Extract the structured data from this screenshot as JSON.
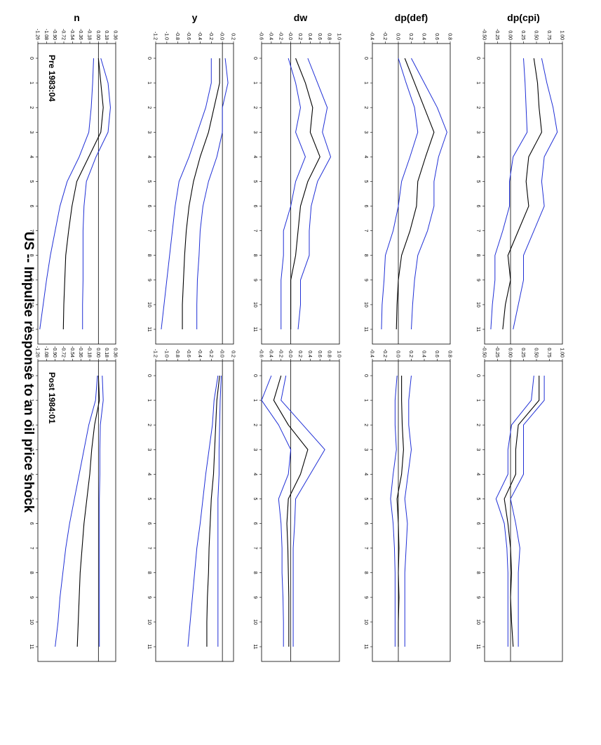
{
  "figure": {
    "title": "US -- Impulse response to an oil price shock",
    "subtitles": [
      "Pre 1983:04",
      "Post 1984:01"
    ]
  },
  "colors": {
    "point": "#000000",
    "band": "#1f2fd6",
    "zero": "#000000",
    "frame": "#000000"
  },
  "chart_data": [
    {
      "type": "line",
      "panel": "Pre 1983:04",
      "ylabel": "dp(cpi)",
      "x": [
        0,
        1,
        2,
        3,
        4,
        5,
        6,
        7,
        8,
        9,
        10,
        11
      ],
      "yticks": [
        "1.00",
        "0.75",
        "0.50",
        "0.25",
        "0.00",
        "-0.25",
        "-0.50"
      ],
      "ylim": [
        -0.5,
        1.0
      ],
      "series": [
        {
          "values": [
            0.45,
            0.52,
            0.55,
            0.6,
            0.35,
            0.3,
            0.35,
            0.15,
            -0.05,
            0.0,
            -0.1,
            -0.15
          ]
        },
        {
          "values": [
            0.6,
            0.7,
            0.82,
            0.9,
            0.65,
            0.6,
            0.65,
            0.45,
            0.25,
            0.25,
            0.15,
            0.05
          ]
        },
        {
          "values": [
            0.25,
            0.28,
            0.3,
            0.32,
            0.05,
            -0.02,
            -0.02,
            -0.15,
            -0.3,
            -0.3,
            -0.35,
            -0.38
          ]
        }
      ]
    },
    {
      "type": "line",
      "panel": "Pre 1983:04",
      "ylabel": "dp(def)",
      "x": [
        0,
        1,
        2,
        3,
        4,
        5,
        6,
        7,
        8,
        9,
        10,
        11
      ],
      "yticks": [
        "0.8",
        "0.6",
        "0.4",
        "0.2",
        "0.0",
        "-0.2",
        "-0.4"
      ],
      "ylim": [
        -0.4,
        0.8
      ],
      "series": [
        {
          "values": [
            0.1,
            0.25,
            0.4,
            0.55,
            0.42,
            0.3,
            0.28,
            0.18,
            0.05,
            0.0,
            -0.02,
            -0.03
          ]
        },
        {
          "values": [
            0.2,
            0.4,
            0.6,
            0.75,
            0.62,
            0.55,
            0.55,
            0.45,
            0.3,
            0.25,
            0.22,
            0.2
          ]
        },
        {
          "values": [
            0.0,
            0.12,
            0.25,
            0.3,
            0.18,
            0.05,
            0.0,
            -0.08,
            -0.2,
            -0.22,
            -0.25,
            -0.26
          ]
        }
      ]
    },
    {
      "type": "line",
      "panel": "Pre 1983:04",
      "ylabel": "dw",
      "x": [
        0,
        1,
        2,
        3,
        4,
        5,
        6,
        7,
        8,
        9,
        10,
        11
      ],
      "yticks": [
        "1.0",
        "0.8",
        "0.6",
        "0.4",
        "0.2",
        "-0.0",
        "-0.2",
        "-0.4",
        "-0.6"
      ],
      "ylim": [
        -0.6,
        1.0
      ],
      "series": [
        {
          "values": [
            0.1,
            0.3,
            0.45,
            0.4,
            0.6,
            0.35,
            0.2,
            0.15,
            0.1,
            0.0,
            0.0,
            0.0
          ]
        },
        {
          "values": [
            0.35,
            0.55,
            0.75,
            0.65,
            0.82,
            0.55,
            0.42,
            0.38,
            0.38,
            0.2,
            0.2,
            0.15
          ]
        },
        {
          "values": [
            -0.05,
            0.1,
            0.2,
            0.1,
            0.3,
            0.1,
            0.0,
            -0.15,
            -0.15,
            -0.2,
            -0.2,
            -0.2
          ]
        }
      ]
    },
    {
      "type": "line",
      "panel": "Pre 1983:04",
      "ylabel": "y",
      "x": [
        0,
        1,
        2,
        3,
        4,
        5,
        6,
        7,
        8,
        9,
        10,
        11
      ],
      "yticks": [
        "0.2",
        "-0.0",
        "-0.2",
        "-0.4",
        "-0.6",
        "-0.8",
        "-1.0",
        "-1.2"
      ],
      "ylim": [
        -1.2,
        0.2
      ],
      "series": [
        {
          "values": [
            -0.05,
            -0.05,
            -0.15,
            -0.25,
            -0.4,
            -0.52,
            -0.6,
            -0.65,
            -0.68,
            -0.7,
            -0.72,
            -0.72
          ]
        },
        {
          "values": [
            0.05,
            0.1,
            0.0,
            0.0,
            -0.1,
            -0.25,
            -0.35,
            -0.4,
            -0.42,
            -0.45,
            -0.46,
            -0.46
          ]
        },
        {
          "values": [
            -0.2,
            -0.2,
            -0.3,
            -0.45,
            -0.6,
            -0.78,
            -0.85,
            -0.9,
            -0.95,
            -1.0,
            -1.05,
            -1.1
          ]
        }
      ]
    },
    {
      "type": "line",
      "panel": "Pre 1983:04",
      "ylabel": "n",
      "x": [
        0,
        1,
        2,
        3,
        4,
        5,
        6,
        7,
        8,
        9,
        10,
        11
      ],
      "yticks": [
        "0.36",
        "0.18",
        "0.00",
        "-0.18",
        "-0.36",
        "-0.54",
        "-0.72",
        "-0.90",
        "-1.08",
        "-1.26"
      ],
      "ylim": [
        -1.26,
        0.36
      ],
      "series": [
        {
          "values": [
            0.0,
            0.05,
            0.1,
            0.05,
            -0.2,
            -0.45,
            -0.55,
            -0.62,
            -0.68,
            -0.7,
            -0.72,
            -0.73
          ]
        },
        {
          "values": [
            0.05,
            0.2,
            0.25,
            0.2,
            -0.05,
            -0.25,
            -0.3,
            -0.32,
            -0.32,
            -0.32,
            -0.33,
            -0.33
          ]
        },
        {
          "values": [
            -0.1,
            -0.12,
            -0.15,
            -0.2,
            -0.4,
            -0.65,
            -0.8,
            -0.9,
            -1.0,
            -1.08,
            -1.15,
            -1.22
          ]
        }
      ]
    },
    {
      "type": "line",
      "panel": "Post 1984:01",
      "x": [
        0,
        1,
        2,
        3,
        4,
        5,
        6,
        7,
        8,
        9,
        10,
        11
      ],
      "yticks": [
        "1.00",
        "0.75",
        "0.50",
        "0.25",
        "0.00",
        "-0.25",
        "-0.50"
      ],
      "ylim": [
        -0.5,
        1.0
      ],
      "series": [
        {
          "values": [
            0.55,
            0.55,
            0.15,
            0.1,
            0.1,
            -0.12,
            -0.05,
            0.0,
            0.02,
            0.0,
            0.02,
            0.05
          ]
        },
        {
          "values": [
            0.65,
            0.65,
            0.25,
            0.25,
            0.25,
            0.0,
            0.1,
            0.18,
            0.15,
            0.15,
            0.15,
            0.15
          ]
        },
        {
          "values": [
            0.45,
            0.4,
            0.02,
            -0.05,
            -0.05,
            -0.28,
            -0.12,
            -0.07,
            -0.05,
            -0.05,
            -0.05,
            -0.05
          ]
        }
      ]
    },
    {
      "type": "line",
      "panel": "Post 1984:01",
      "x": [
        0,
        1,
        2,
        3,
        4,
        5,
        6,
        7,
        8,
        9,
        10,
        11
      ],
      "yticks": [
        "0.8",
        "0.6",
        "0.4",
        "0.2",
        "0.0",
        "-0.2",
        "-0.4"
      ],
      "ylim": [
        -0.4,
        0.8
      ],
      "series": [
        {
          "values": [
            0.05,
            0.05,
            0.06,
            0.08,
            0.05,
            -0.02,
            0.0,
            0.01,
            0.0,
            0.01,
            0.0,
            0.0
          ]
        },
        {
          "values": [
            0.2,
            0.16,
            0.16,
            0.2,
            0.15,
            0.1,
            0.14,
            0.12,
            0.1,
            0.1,
            0.1,
            0.1
          ]
        },
        {
          "values": [
            -0.02,
            -0.05,
            -0.05,
            -0.03,
            -0.08,
            -0.12,
            -0.08,
            -0.06,
            -0.05,
            -0.05,
            -0.05,
            -0.05
          ]
        }
      ]
    },
    {
      "type": "line",
      "panel": "Post 1984:01",
      "x": [
        0,
        1,
        2,
        3,
        4,
        5,
        6,
        7,
        8,
        9,
        10,
        11
      ],
      "yticks": [
        "1.0",
        "0.8",
        "0.6",
        "0.4",
        "0.2",
        "-0.0",
        "-0.2",
        "-0.4",
        "-0.6"
      ],
      "ylim": [
        -0.6,
        1.0
      ],
      "series": [
        {
          "values": [
            -0.2,
            -0.35,
            -0.05,
            0.35,
            0.2,
            -0.05,
            -0.08,
            -0.06,
            -0.05,
            -0.04,
            -0.04,
            -0.04
          ]
        },
        {
          "values": [
            -0.1,
            -0.2,
            0.25,
            0.7,
            0.4,
            0.1,
            0.08,
            0.05,
            0.05,
            0.05,
            0.05,
            0.05
          ]
        },
        {
          "values": [
            -0.4,
            -0.6,
            -0.25,
            0.0,
            -0.05,
            -0.25,
            -0.2,
            -0.18,
            -0.18,
            -0.16,
            -0.15,
            -0.15
          ]
        }
      ]
    },
    {
      "type": "line",
      "panel": "Post 1984:01",
      "x": [
        0,
        1,
        2,
        3,
        4,
        5,
        6,
        7,
        8,
        9,
        10,
        11
      ],
      "yticks": [
        "0.2",
        "-0.0",
        "-0.2",
        "-0.4",
        "-0.6",
        "-0.8",
        "-1.0",
        "-1.2"
      ],
      "ylim": [
        -1.2,
        0.2
      ],
      "series": [
        {
          "values": [
            -0.05,
            -0.1,
            -0.12,
            -0.14,
            -0.16,
            -0.2,
            -0.22,
            -0.24,
            -0.25,
            -0.27,
            -0.28,
            -0.28
          ]
        },
        {
          "values": [
            -0.02,
            -0.04,
            -0.05,
            -0.06,
            -0.06,
            -0.08,
            -0.08,
            -0.08,
            -0.08,
            -0.08,
            -0.08,
            -0.08
          ]
        },
        {
          "values": [
            -0.08,
            -0.15,
            -0.18,
            -0.24,
            -0.3,
            -0.35,
            -0.4,
            -0.46,
            -0.5,
            -0.54,
            -0.58,
            -0.62
          ]
        }
      ]
    },
    {
      "type": "line",
      "panel": "Post 1984:01",
      "x": [
        0,
        1,
        2,
        3,
        4,
        5,
        6,
        7,
        8,
        9,
        10,
        11
      ],
      "yticks": [
        "0.36",
        "0.18",
        "0.00",
        "-0.18",
        "-0.36",
        "-0.54",
        "-0.72",
        "-0.90",
        "-1.08",
        "-1.26"
      ],
      "ylim": [
        -1.26,
        0.36
      ],
      "series": [
        {
          "values": [
            0.0,
            0.02,
            -0.08,
            -0.14,
            -0.18,
            -0.24,
            -0.3,
            -0.34,
            -0.38,
            -0.4,
            -0.42,
            -0.44
          ]
        },
        {
          "values": [
            0.08,
            0.1,
            0.04,
            0.03,
            0.03,
            0.02,
            0.02,
            0.02,
            0.02,
            0.02,
            0.02,
            0.02
          ]
        },
        {
          "values": [
            -0.02,
            -0.06,
            -0.2,
            -0.3,
            -0.4,
            -0.5,
            -0.6,
            -0.68,
            -0.74,
            -0.8,
            -0.84,
            -0.9
          ]
        }
      ]
    }
  ]
}
